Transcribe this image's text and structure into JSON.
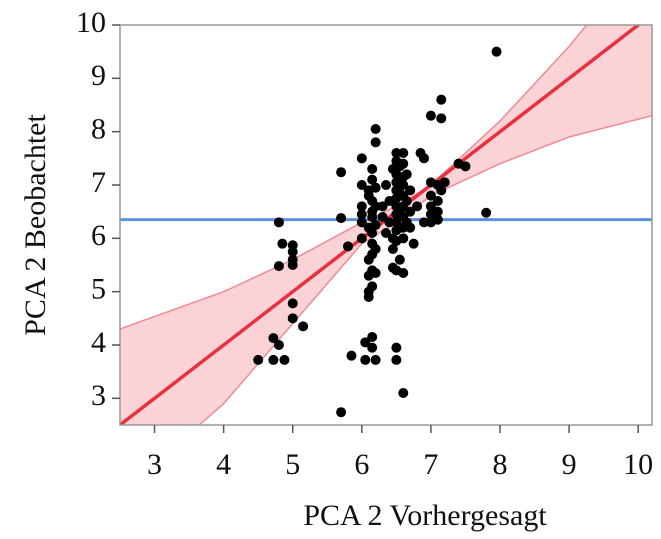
{
  "chart_data": {
    "type": "scatter",
    "x_label": "PCA 2 Vorhergesagt",
    "y_label": "PCA 2 Beobachtet",
    "xlim": [
      2.5,
      10.2
    ],
    "ylim": [
      2.5,
      10
    ],
    "xticks": [
      3,
      4,
      5,
      6,
      7,
      8,
      9,
      10
    ],
    "yticks": [
      3,
      4,
      5,
      6,
      7,
      8,
      9,
      10
    ],
    "points": {
      "color": "#000000",
      "x": [
        4.8,
        4.85,
        4.8,
        4.72,
        4.8,
        4.5,
        4.72,
        4.88,
        5.0,
        5.0,
        5.0,
        5.0,
        5.0,
        5.0,
        5.15,
        5.7,
        5.7,
        5.8,
        5.7,
        5.85,
        6.0,
        6.0,
        6.0,
        6.0,
        6.0,
        6.0,
        6.05,
        6.05,
        6.1,
        6.1,
        6.1,
        6.1,
        6.1,
        6.1,
        6.1,
        6.15,
        6.15,
        6.15,
        6.15,
        6.15,
        6.15,
        6.15,
        6.15,
        6.15,
        6.15,
        6.15,
        6.15,
        6.2,
        6.2,
        6.2,
        6.2,
        6.2,
        6.2,
        6.2,
        6.2,
        6.3,
        6.3,
        6.35,
        6.35,
        6.4,
        6.4,
        6.45,
        6.45,
        6.45,
        6.45,
        6.5,
        6.5,
        6.5,
        6.5,
        6.5,
        6.5,
        6.5,
        6.5,
        6.5,
        6.5,
        6.5,
        6.5,
        6.5,
        6.5,
        6.55,
        6.55,
        6.55,
        6.55,
        6.55,
        6.6,
        6.6,
        6.6,
        6.6,
        6.6,
        6.6,
        6.6,
        6.6,
        6.6,
        6.6,
        6.6,
        6.65,
        6.65,
        6.65,
        6.7,
        6.7,
        6.7,
        6.75,
        6.8,
        6.85,
        6.9,
        6.9,
        7.0,
        7.0,
        7.0,
        7.0,
        7.0,
        7.0,
        7.1,
        7.1,
        7.1,
        7.1,
        7.15,
        7.15,
        7.15,
        7.2,
        7.4,
        7.5,
        7.8,
        7.95
      ],
      "y": [
        6.3,
        5.9,
        5.48,
        4.13,
        4.0,
        3.72,
        3.72,
        3.72,
        5.87,
        5.75,
        5.6,
        5.5,
        4.78,
        4.5,
        4.35,
        2.74,
        7.24,
        5.85,
        6.38,
        3.8,
        7.0,
        6.6,
        6.45,
        6.3,
        6.0,
        7.5,
        4.05,
        3.72,
        6.2,
        5.6,
        5.3,
        4.9,
        5.0,
        6.8,
        6.9,
        7.3,
        7.1,
        6.7,
        6.5,
        6.4,
        6.1,
        5.9,
        5.7,
        5.4,
        5.1,
        4.15,
        3.95,
        3.72,
        8.05,
        7.8,
        6.6,
        6.25,
        5.8,
        5.35,
        6.95,
        6.6,
        6.4,
        6.1,
        7.0,
        6.7,
        6.3,
        5.8,
        6.0,
        5.45,
        7.3,
        7.6,
        7.45,
        7.2,
        7.05,
        6.9,
        6.75,
        6.6,
        6.45,
        6.3,
        6.15,
        5.95,
        5.4,
        3.95,
        3.72,
        7.35,
        6.85,
        6.5,
        6.2,
        5.6,
        7.6,
        7.4,
        7.15,
        7.0,
        6.8,
        6.6,
        6.4,
        6.2,
        6.0,
        5.35,
        3.1,
        7.2,
        6.7,
        6.3,
        6.9,
        6.5,
        6.2,
        5.9,
        6.6,
        7.6,
        7.5,
        6.3,
        7.05,
        6.8,
        6.6,
        6.45,
        6.3,
        8.3,
        7.0,
        6.7,
        6.5,
        6.35,
        8.6,
        8.25,
        6.9,
        7.05,
        7.4,
        7.35,
        6.48,
        9.5
      ]
    },
    "fit": {
      "color": "#e8313f",
      "x": [
        2.5,
        10.2
      ],
      "values": [
        2.5,
        10.2
      ]
    },
    "band": {
      "color": "#f08a93",
      "fill": "#fbd3d7",
      "x": [
        2.5,
        4,
        5,
        6,
        6.5,
        7,
        8,
        9,
        10.2
      ],
      "upper": [
        4.3,
        5.0,
        5.6,
        6.3,
        6.6,
        7.0,
        8.2,
        9.6,
        11.5
      ],
      "lower": [
        1.2,
        2.9,
        4.4,
        5.9,
        6.3,
        6.8,
        7.4,
        7.9,
        8.3
      ]
    },
    "mean": {
      "color": "#5b8fe0",
      "value": 6.35
    }
  }
}
